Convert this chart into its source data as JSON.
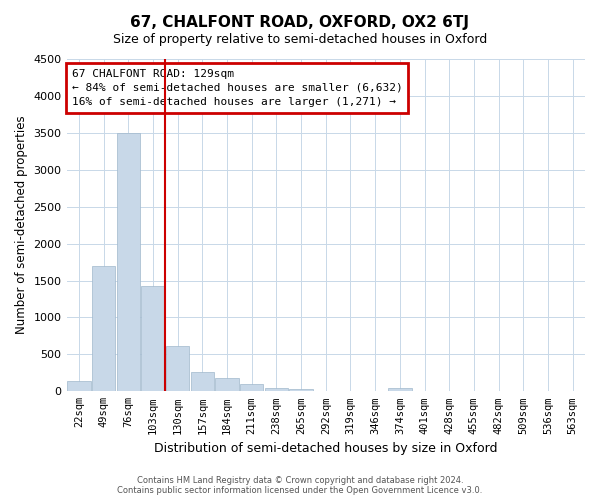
{
  "title": "67, CHALFONT ROAD, OXFORD, OX2 6TJ",
  "subtitle": "Size of property relative to semi-detached houses in Oxford",
  "xlabel": "Distribution of semi-detached houses by size in Oxford",
  "ylabel": "Number of semi-detached properties",
  "bin_labels": [
    "22sqm",
    "49sqm",
    "76sqm",
    "103sqm",
    "130sqm",
    "157sqm",
    "184sqm",
    "211sqm",
    "238sqm",
    "265sqm",
    "292sqm",
    "319sqm",
    "346sqm",
    "374sqm",
    "401sqm",
    "428sqm",
    "455sqm",
    "482sqm",
    "509sqm",
    "536sqm",
    "563sqm"
  ],
  "bar_heights": [
    140,
    1700,
    3500,
    1430,
    620,
    260,
    175,
    95,
    50,
    25,
    10,
    5,
    3,
    40,
    0,
    0,
    0,
    0,
    0,
    0,
    0
  ],
  "bar_color": "#c8d8e8",
  "bar_edge_color": "#a0b8cc",
  "vline_x": 3.5,
  "vline_color": "#cc0000",
  "annotation_box_text": "67 CHALFONT ROAD: 129sqm\n← 84% of semi-detached houses are smaller (6,632)\n16% of semi-detached houses are larger (1,271) →",
  "annotation_box_color": "#cc0000",
  "ylim": [
    0,
    4500
  ],
  "yticks": [
    0,
    500,
    1000,
    1500,
    2000,
    2500,
    3000,
    3500,
    4000,
    4500
  ],
  "grid_color": "#c8d8e8",
  "footer_line1": "Contains HM Land Registry data © Crown copyright and database right 2024.",
  "footer_line2": "Contains public sector information licensed under the Open Government Licence v3.0.",
  "background_color": "#ffffff",
  "fig_width": 6.0,
  "fig_height": 5.0
}
